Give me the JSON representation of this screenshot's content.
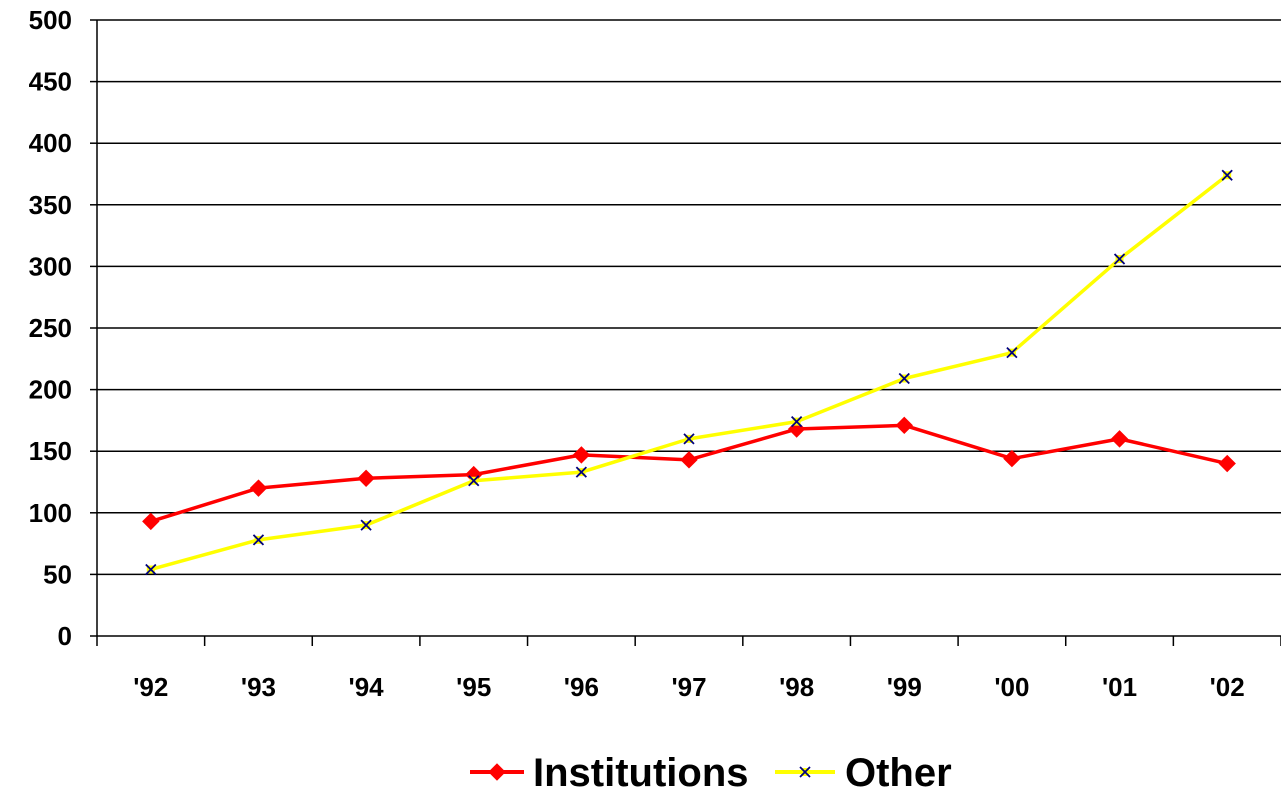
{
  "chart_data": {
    "type": "line",
    "title": "",
    "xlabel": "",
    "ylabel": "",
    "categories": [
      "'92",
      "'93",
      "'94",
      "'95",
      "'96",
      "'97",
      "'98",
      "'99",
      "'00",
      "'01",
      "'02"
    ],
    "ylim": [
      0,
      500
    ],
    "yticks": [
      "0",
      "50",
      "100",
      "150",
      "200",
      "250",
      "300",
      "350",
      "400",
      "450",
      "500"
    ],
    "grid": "horizontal",
    "legend_position": "bottom",
    "series": [
      {
        "name": "Institutions",
        "color": "#ff0000",
        "marker": "diamond",
        "values": [
          93,
          120,
          128,
          131,
          147,
          143,
          168,
          171,
          144,
          160,
          140
        ]
      },
      {
        "name": "Other",
        "color": "#ffff00",
        "marker_color": "#000080",
        "marker": "x",
        "values": [
          54,
          78,
          90,
          126,
          133,
          160,
          174,
          209,
          230,
          306,
          374
        ]
      }
    ]
  }
}
